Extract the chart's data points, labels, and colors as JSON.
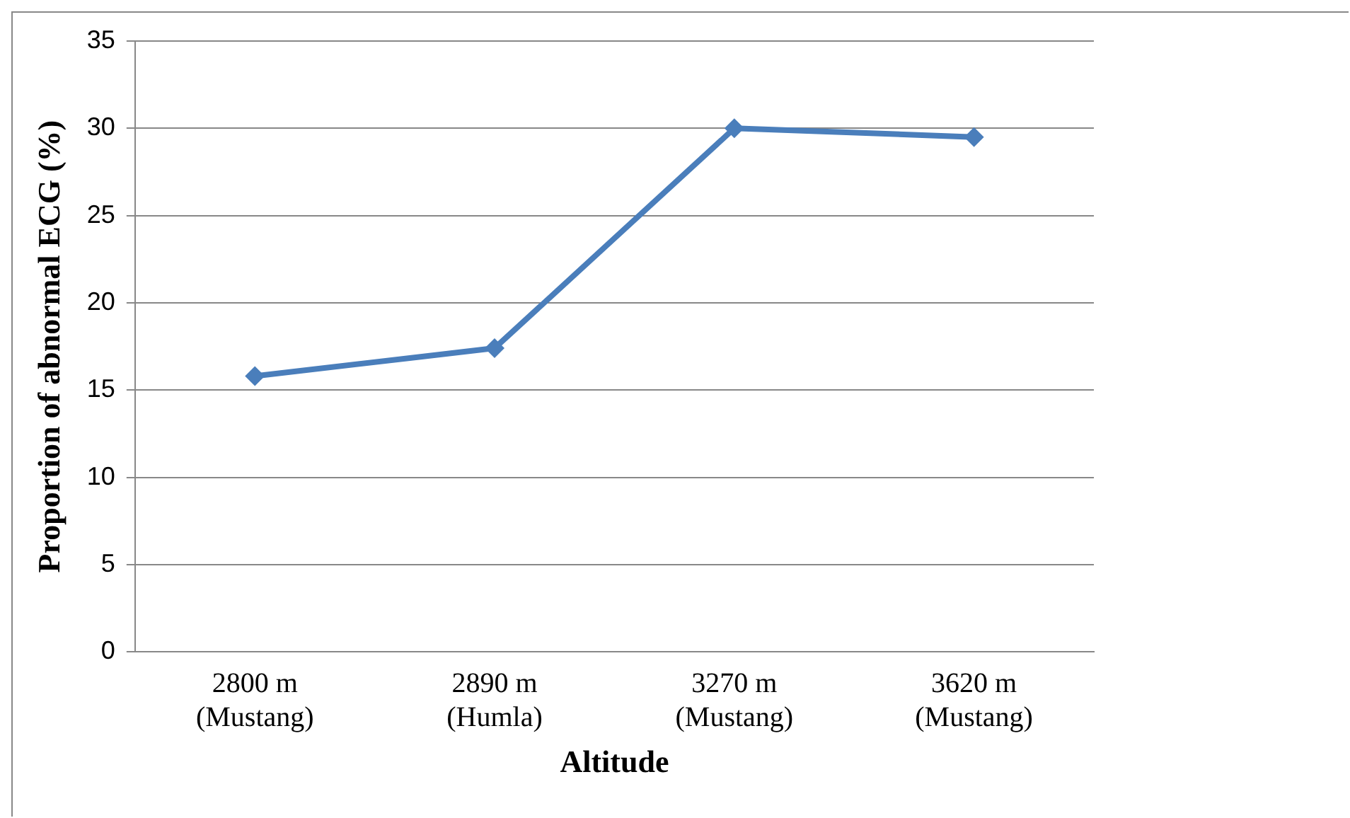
{
  "chart_data": {
    "type": "line",
    "xlabel": "Altitude",
    "ylabel": "Proportion of abnormal ECG (%)",
    "categories": [
      "2800 m\n(Mustang)",
      "2890 m\n(Humla)",
      "3270 m\n(Mustang)",
      "3620 m\n(Mustang)"
    ],
    "series": [
      {
        "color": "#4a7ebb",
        "values": [
          15.8,
          17.4,
          30.0,
          29.5
        ]
      }
    ],
    "ylim": [
      0,
      35
    ],
    "yticks": [
      0,
      5,
      10,
      15,
      20,
      25,
      30,
      35
    ],
    "grid": "y",
    "legend": false,
    "marker": "diamond",
    "line_style": "solid"
  }
}
